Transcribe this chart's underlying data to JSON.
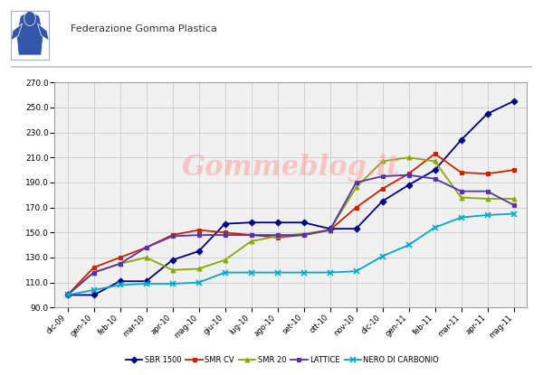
{
  "x_labels": [
    "dic-09",
    "gen-10",
    "feb-10",
    "mar-10",
    "apr-10",
    "mag-10",
    "giu-10",
    "lug-10",
    "ago-10",
    "set-10",
    "ott-10",
    "nov-10",
    "dic-10",
    "gen-11",
    "feb-11",
    "mar-11",
    "apr-11",
    "mag-11"
  ],
  "SBR_1500": [
    100,
    100,
    111,
    111,
    128,
    135,
    157,
    158,
    158,
    158,
    153,
    153,
    175,
    188,
    200,
    224,
    245,
    255
  ],
  "SMR_CV": [
    100,
    122,
    130,
    138,
    148,
    152,
    150,
    148,
    146,
    148,
    152,
    170,
    185,
    197,
    213,
    198,
    197,
    200
  ],
  "SMR_20": [
    100,
    118,
    125,
    130,
    120,
    121,
    128,
    143,
    147,
    149,
    152,
    186,
    207,
    210,
    207,
    178,
    177,
    177
  ],
  "LATTICE": [
    100,
    118,
    125,
    138,
    147,
    148,
    148,
    148,
    148,
    148,
    152,
    190,
    195,
    196,
    193,
    183,
    183,
    172
  ],
  "NERO_DI_CARBONIO": [
    100,
    104,
    108,
    109,
    109,
    110,
    118,
    118,
    118,
    118,
    118,
    119,
    131,
    140,
    154,
    162,
    164,
    165
  ],
  "ylim": [
    90,
    270
  ],
  "yticks": [
    90,
    110,
    130,
    150,
    170,
    190,
    210,
    230,
    250,
    270
  ],
  "colors": {
    "SBR_1500": "#00008B",
    "SMR_CV": "#CC2200",
    "SMR_20": "#88AA00",
    "LATTICE": "#5533AA",
    "NERO_DI_CARBONIO": "#00AACC"
  },
  "background_color": "#FFFFFF",
  "grid_color": "#CCCCCC",
  "watermark": "Gommeblog.it",
  "header_text": "Federazione Gomma Plastica",
  "legend_labels": [
    "SBR 1500",
    "SMR CV",
    "SMR 20",
    "LATTICE",
    "NERO DI CARBONIO"
  ]
}
